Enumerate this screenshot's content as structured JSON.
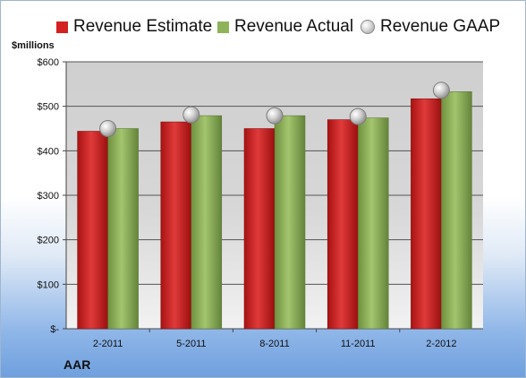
{
  "legend": {
    "estimate": "Revenue Estimate",
    "actual": "Revenue Actual",
    "gaap": "Revenue GAAP"
  },
  "units_label": "$millions",
  "company": "AAR",
  "colors": {
    "estimate": "#d42020",
    "actual": "#8fb35a",
    "gaap": "#c8c8c8"
  },
  "chart_data": {
    "type": "bar",
    "categories": [
      "2-2011",
      "5-2011",
      "8-2011",
      "11-2011",
      "2-2012"
    ],
    "series": [
      {
        "name": "Revenue Estimate",
        "values": [
          444,
          465,
          450,
          470,
          517
        ]
      },
      {
        "name": "Revenue Actual",
        "values": [
          450,
          479,
          479,
          474,
          533
        ]
      },
      {
        "name": "Revenue GAAP",
        "type": "scatter",
        "values": [
          450,
          481,
          479,
          477,
          536
        ]
      }
    ],
    "ylabel": "$millions",
    "ylim": [
      0,
      600
    ],
    "yticks": [
      0,
      100,
      200,
      300,
      400,
      500,
      600
    ],
    "yticklabels": [
      "$-",
      "$100",
      "$200",
      "$300",
      "$400",
      "$500",
      "$600"
    ],
    "grid": true,
    "legend_position": "top"
  }
}
